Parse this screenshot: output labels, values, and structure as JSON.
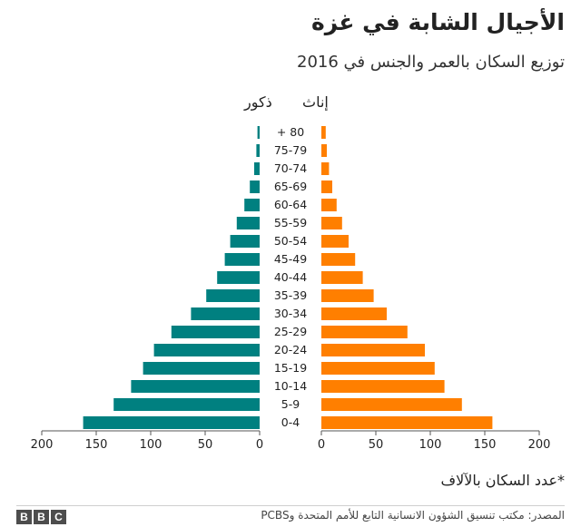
{
  "title": "الأجيال الشابة في غزة",
  "subtitle": "توزيع السكان بالعمر والجنس في 2016",
  "legend": {
    "female": "إناث",
    "male": "ذكور"
  },
  "note": "*عدد السكان بالآلاف",
  "source": "المصدر: مكتب تنسيق الشؤون الانسانية التابع للأمم المتحدة وPCBS",
  "brand": [
    "B",
    "B",
    "C"
  ],
  "colors": {
    "male": "#008080",
    "female": "#ff7f00"
  },
  "chart_data": {
    "type": "bar",
    "orientation": "horizontal-pyramid",
    "categories": [
      "0-4",
      "5-9",
      "10-14",
      "15-19",
      "20-24",
      "25-29",
      "30-34",
      "35-39",
      "40-44",
      "45-49",
      "50-54",
      "55-59",
      "60-64",
      "65-69",
      "70-74",
      "75-79",
      "+ 80"
    ],
    "series": [
      {
        "name": "ذكور",
        "side": "left",
        "values": [
          162,
          134,
          118,
          107,
          97,
          81,
          63,
          49,
          39,
          32,
          27,
          21,
          14,
          9,
          5,
          3,
          2
        ]
      },
      {
        "name": "إناث",
        "side": "right",
        "values": [
          157,
          129,
          113,
          104,
          95,
          79,
          60,
          48,
          38,
          31,
          25,
          19,
          14,
          10,
          7,
          5,
          4
        ]
      }
    ],
    "xlim": [
      0,
      200
    ],
    "male_ticks": [
      "200",
      "150",
      "100",
      "50",
      "0"
    ],
    "female_ticks": [
      "0",
      "50",
      "100",
      "150",
      "200"
    ]
  }
}
